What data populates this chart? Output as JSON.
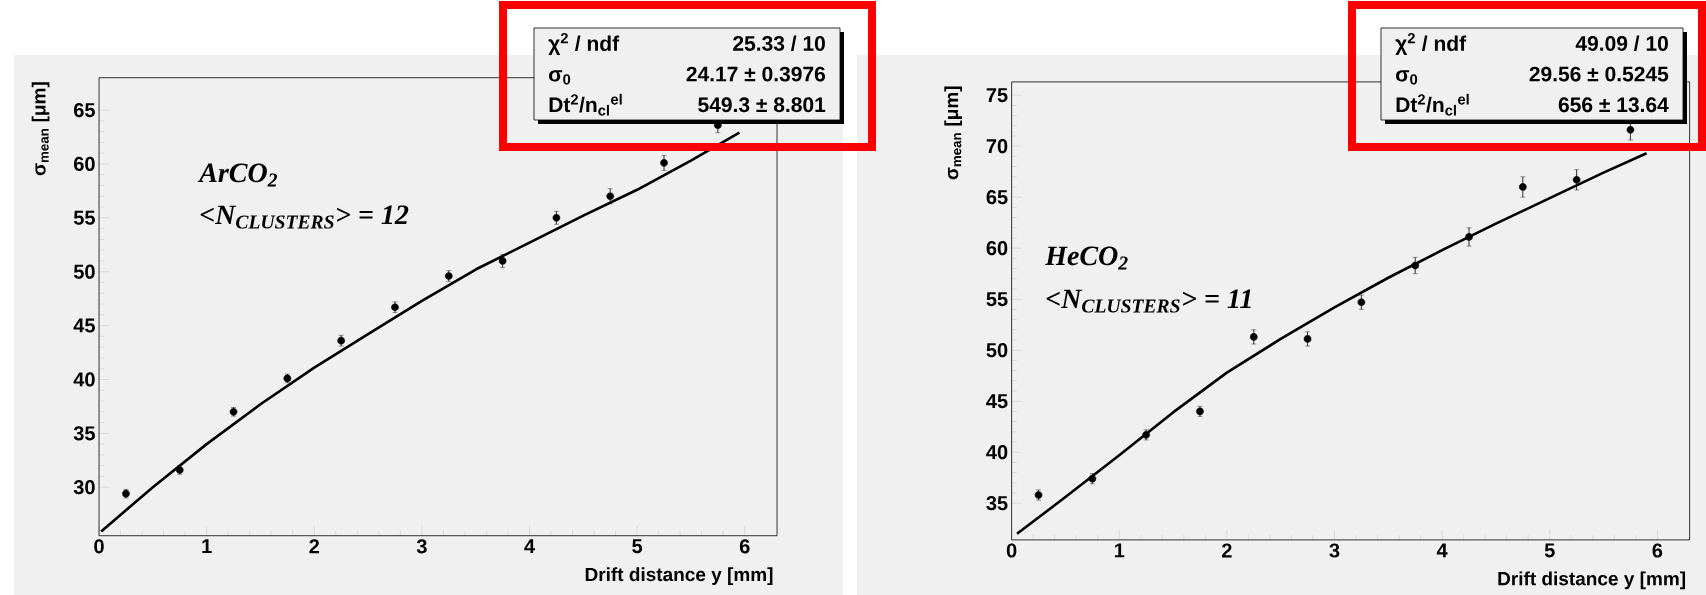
{
  "chart_data": [
    {
      "type": "scatter",
      "marker": "circle",
      "xlabel": "Drift distance y [mm]",
      "ylabel": "σ$_{mean}$ [μm]",
      "xlim": [
        0,
        6.3
      ],
      "ylim": [
        25.5,
        68
      ],
      "xticks": [
        0,
        1,
        2,
        3,
        4,
        5,
        6
      ],
      "yticks": [
        30,
        35,
        40,
        45,
        50,
        55,
        60,
        65
      ],
      "annotations": [
        "ArCO$_{2}$",
        "<N$_{CLUSTERS}$> = 12",
        "χ$^{2}$ / ndf",
        "25.33 / 10",
        "σ$_{0}$",
        "24.17 ± 0.3976",
        "Dt$^{2}$/n$_{cl}$$^{el}$",
        "549.3 ± 8.801"
      ],
      "series": [
        {
          "type": "scatter",
          "color": "#000000",
          "x": [
            0.25,
            0.75,
            1.25,
            1.75,
            2.25,
            2.75,
            3.25,
            3.75,
            4.25,
            4.75,
            5.25,
            5.75
          ],
          "values": [
            29.4,
            31.6,
            37.0,
            40.1,
            43.6,
            46.7,
            49.6,
            51.0,
            55.0,
            57.0,
            60.1,
            63.6
          ],
          "errors": [
            0.4,
            0.4,
            0.4,
            0.4,
            0.5,
            0.5,
            0.5,
            0.6,
            0.6,
            0.7,
            0.7,
            0.7
          ]
        },
        {
          "type": "line",
          "color": "#000000",
          "marker": "none",
          "line_style": "solid",
          "x": [
            0.02,
            0.5,
            1,
            1.5,
            2,
            2.5,
            3,
            3.5,
            4,
            4.5,
            5,
            5.5,
            5.95
          ],
          "values": [
            25.9,
            30.0,
            34.0,
            37.7,
            41.1,
            44.2,
            47.3,
            50.2,
            52.7,
            55.2,
            57.6,
            60.3,
            62.9
          ]
        }
      ]
    },
    {
      "type": "scatter",
      "marker": "circle",
      "xlabel": "Drift distance y [mm]",
      "ylabel": "σ$_{mean}$ [μm]",
      "xlim": [
        0,
        6.3
      ],
      "ylim": [
        31.4,
        76.3
      ],
      "xticks": [
        0,
        1,
        2,
        3,
        4,
        5,
        6
      ],
      "yticks": [
        35,
        40,
        45,
        50,
        55,
        60,
        65,
        70,
        75
      ],
      "annotations": [
        "HeCO$_{2}$",
        "<N$_{CLUSTERS}$> = 11",
        "χ$^{2}$ / ndf",
        "49.09 / 10",
        "σ$_{0}$",
        "29.56 ± 0.5245",
        "Dt$^{2}$/n$_{cl}$$^{el}$",
        "656 ± 13.64"
      ],
      "series": [
        {
          "type": "scatter",
          "color": "#000000",
          "x": [
            0.25,
            0.75,
            1.25,
            1.75,
            2.25,
            2.75,
            3.25,
            3.75,
            4.25,
            4.75,
            5.25,
            5.75
          ],
          "values": [
            35.8,
            37.4,
            41.7,
            44.0,
            51.3,
            51.1,
            54.7,
            58.3,
            61.1,
            66.0,
            66.7,
            71.6
          ],
          "errors": [
            0.5,
            0.5,
            0.5,
            0.5,
            0.7,
            0.7,
            0.7,
            0.8,
            0.9,
            1.0,
            1.0,
            1.0
          ]
        },
        {
          "type": "line",
          "color": "#000000",
          "marker": "none",
          "line_style": "solid",
          "x": [
            0.05,
            0.5,
            1,
            1.5,
            2,
            2.5,
            3,
            3.5,
            4,
            4.5,
            5,
            5.5,
            5.9
          ],
          "values": [
            32.0,
            35.6,
            39.7,
            43.9,
            47.8,
            51.1,
            54.2,
            57.1,
            59.8,
            62.4,
            64.9,
            67.4,
            69.3
          ]
        }
      ]
    }
  ]
}
